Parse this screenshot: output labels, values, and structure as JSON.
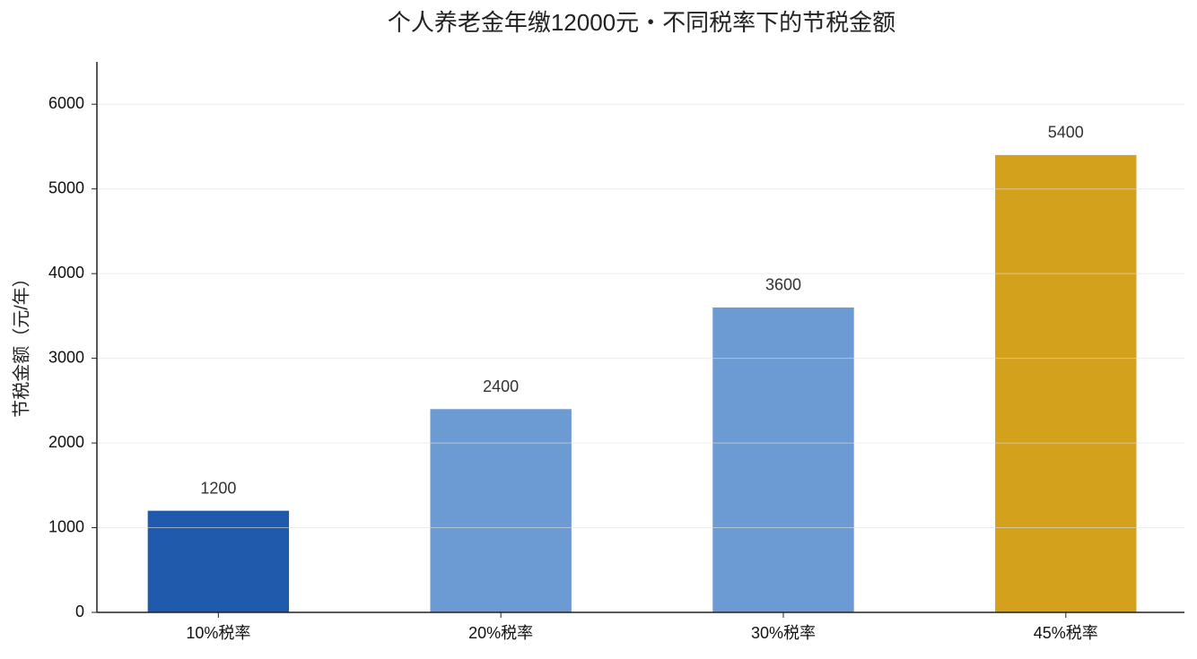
{
  "chart_data": {
    "type": "bar",
    "title": "个人养老金年缴12000元・不同税率下的节税金额",
    "y_label": "节税金额（元/年）",
    "categories": [
      "10%税率",
      "20%税率",
      "30%税率",
      "45%税率"
    ],
    "values": [
      1200,
      2400,
      3600,
      5400
    ],
    "colors": [
      "#1f5aad",
      "#6b9bd2",
      "#6b9bd2",
      "#d4a11c"
    ],
    "ylim": [
      0,
      6500
    ],
    "yticks": [
      0,
      1000,
      2000,
      3000,
      4000,
      5000,
      6000
    ],
    "grid": true
  }
}
